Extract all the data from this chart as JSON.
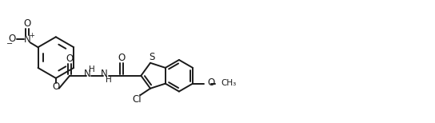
{
  "bg_color": "#ffffff",
  "line_color": "#1a1a1a",
  "line_width": 1.4,
  "fig_width": 5.44,
  "fig_height": 1.54,
  "dpi": 100,
  "xlim": [
    0,
    544
  ],
  "ylim": [
    0,
    154
  ]
}
